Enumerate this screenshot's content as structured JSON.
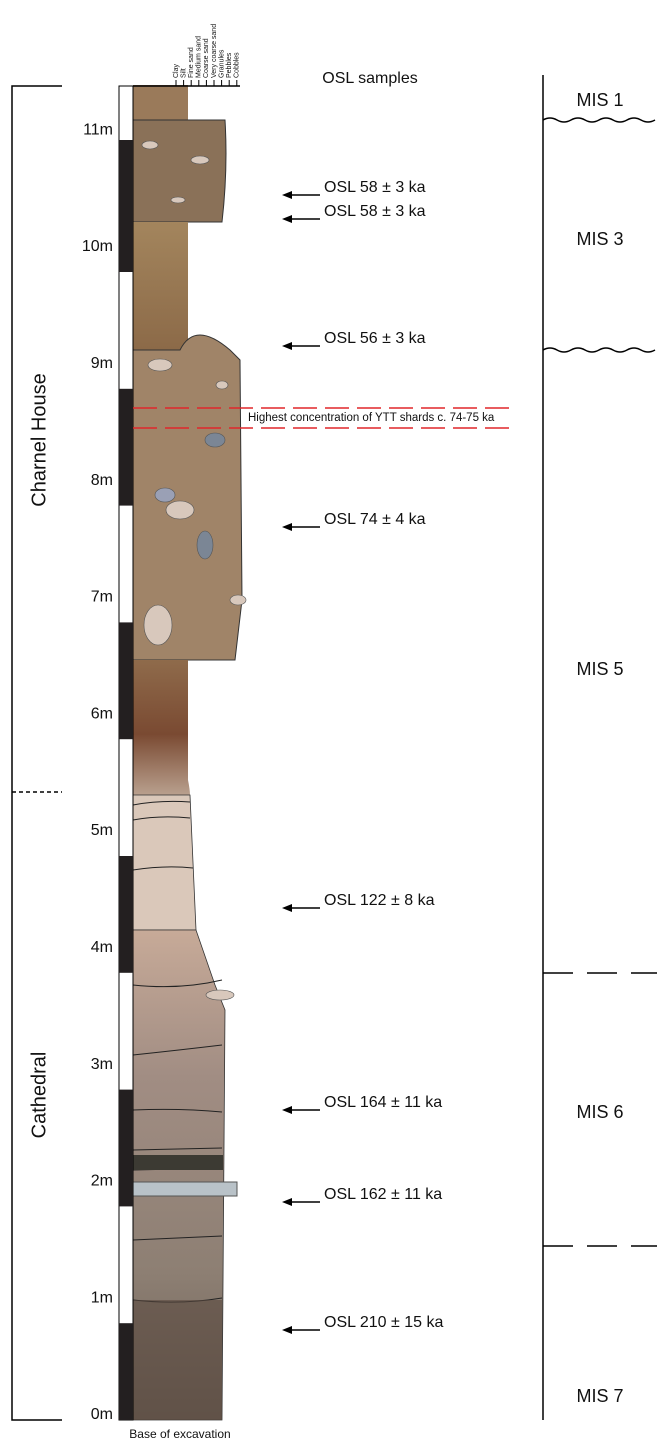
{
  "scale": {
    "labels": [
      "0m",
      "1m",
      "2m",
      "3m",
      "4m",
      "5m",
      "6m",
      "7m",
      "8m",
      "9m",
      "10m",
      "11m"
    ]
  },
  "grain_sizes": [
    "Clay",
    "Silt",
    "Fine sand",
    "Medium sand",
    "Coarse sand",
    "Very coarse sand",
    "Granules",
    "Pebbles",
    "Cobbles"
  ],
  "osl": {
    "header": "OSL samples",
    "samples": [
      "OSL  58 ± 3 ka",
      "OSL  58 ± 3 ka",
      "OSL  56 ± 3 ka",
      "OSL  74 ± 4 ka",
      "OSL  122 ± 8 ka",
      "OSL  164 ± 11 ka",
      "OSL  162 ± 11 ka",
      "OSL  210 ± 15 ka"
    ]
  },
  "tephra": "Highest concentration of YTT shards c. 74-75 ka",
  "units": [
    "Charnel House",
    "Cathedral"
  ],
  "mis": [
    "MIS 1",
    "MIS 3",
    "MIS 5",
    "MIS 6",
    "MIS 7"
  ],
  "footer": "Base of excavation"
}
